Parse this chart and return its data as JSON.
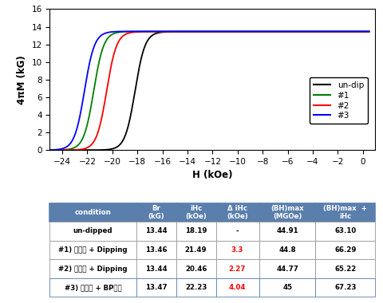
{
  "xlabel": "H (kOe)",
  "ylabel": "4πM (kG)",
  "xlim": [
    -25,
    1
  ],
  "ylim": [
    0,
    16
  ],
  "xticks": [
    -24,
    -22,
    -20,
    -18,
    -16,
    -14,
    -12,
    -10,
    -8,
    -6,
    -4,
    -2,
    0
  ],
  "yticks": [
    0,
    2,
    4,
    6,
    8,
    10,
    12,
    14,
    16
  ],
  "curves": [
    {
      "label": "un-dip",
      "color": "black",
      "iHc": -18.19,
      "sat": 13.44,
      "k": 2.5
    },
    {
      "label": "#1",
      "color": "green",
      "iHc": -21.49,
      "sat": 13.46,
      "k": 2.5
    },
    {
      "label": "#2",
      "color": "red",
      "iHc": -20.46,
      "sat": 13.44,
      "k": 2.5
    },
    {
      "label": "#3",
      "color": "blue",
      "iHc": -22.23,
      "sat": 13.47,
      "k": 2.5
    }
  ],
  "table": {
    "header_bg": "#5b7fad",
    "header_text_color": "white",
    "border_color": "#5b7fad",
    "col_headers": [
      "condition",
      "Br\n(kG)",
      "iHc\n(kOe)",
      "Δ iHc\n(kOe)",
      "(BH)max\n(MGOe)",
      "(BH)max  +\niHc"
    ],
    "col_widths": [
      0.26,
      0.12,
      0.12,
      0.13,
      0.17,
      0.18
    ],
    "rows": [
      {
        "condition": "un-dipped",
        "Br": "13.44",
        "iHc": "18.19",
        "diHc": "-",
        "diHc_red": false,
        "BHmax": "44.91",
        "BHiHc": "63.10"
      },
      {
        "condition": "#1) 조분쏄 + Dipping",
        "Br": "13.46",
        "iHc": "21.49",
        "diHc": "3.3",
        "diHc_red": true,
        "BHmax": "44.8",
        "BHiHc": "66.29"
      },
      {
        "condition": "#2) 미분쏄 + Dipping",
        "Br": "13.44",
        "iHc": "20.46",
        "diHc": "2.27",
        "diHc_red": true,
        "BHmax": "44.77",
        "BHiHc": "65.22"
      },
      {
        "condition": "#3) 미분쏄 + BP코팅",
        "Br": "13.47",
        "iHc": "22.23",
        "diHc": "4.04",
        "diHc_red": true,
        "BHmax": "45",
        "BHiHc": "67.23"
      }
    ]
  }
}
